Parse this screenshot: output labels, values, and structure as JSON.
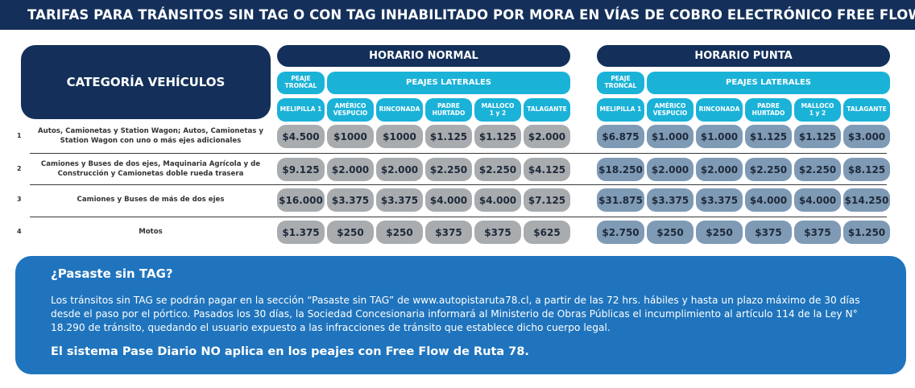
{
  "title": "TARIFAS PARA TRÁNSITOS SIN TAG O CON TAG INHABILITADO POR MORA EN VÍAS DE COBRO ELECTRÓNICO FREE FLOW",
  "table": {
    "category_header": "CATEGORÍA VEHÍCULOS",
    "groups": [
      {
        "label": "HORARIO NORMAL",
        "troncal_label": "PEAJE\nTRONCAL",
        "laterales_label": "PEAJES LATERALES",
        "columns": [
          "MELIPILLA 1",
          "AMÉRICO\nVESPUCIO",
          "RINCONADA",
          "PADRE\nHURTADO",
          "MALLOCO\n1 y 2",
          "TALAGANTE"
        ]
      },
      {
        "label": "HORARIO PUNTA",
        "troncal_label": "PEAJE\nTRONCAL",
        "laterales_label": "PEAJES LATERALES",
        "columns": [
          "MELIPILLA 1",
          "AMÉRICO\nVESPUCIO",
          "RINCONADA",
          "PADRE\nHURTADO",
          "MALLOCO\n1 y 2",
          "TALAGANTE"
        ]
      }
    ],
    "rows": [
      {
        "num": "1",
        "label": "Autos, Camionetas y Station Wagon; Autos, Camionetas y Station Wagon con uno o más ejes adicionales",
        "normal": [
          "$4.500",
          "$1000",
          "$1000",
          "$1.125",
          "$1.125",
          "$2.000"
        ],
        "punta": [
          "$6.875",
          "$1.000",
          "$1.000",
          "$1.125",
          "$1.125",
          "$3.000"
        ]
      },
      {
        "num": "2",
        "label": "Camiones y Buses de dos ejes, Maquinaria Agrícola y de Construcción y Camionetas doble rueda trasera",
        "normal": [
          "$9.125",
          "$2.000",
          "$2.000",
          "$2.250",
          "$2.250",
          "$4.125"
        ],
        "punta": [
          "$18.250",
          "$2.000",
          "$2.000",
          "$2.250",
          "$2.250",
          "$8.125"
        ]
      },
      {
        "num": "3",
        "label": "Camiones y Buses de más de dos ejes",
        "normal": [
          "$16.000",
          "$3.375",
          "$3.375",
          "$4.000",
          "$4.000",
          "$7.125"
        ],
        "punta": [
          "$31.875",
          "$3.375",
          "$3.375",
          "$4.000",
          "$4.000",
          "$14.250"
        ]
      },
      {
        "num": "4",
        "label": "Motos",
        "normal": [
          "$1.375",
          "$250",
          "$250",
          "$375",
          "$375",
          "$625"
        ],
        "punta": [
          "$2.750",
          "$250",
          "$250",
          "$375",
          "$375",
          "$1.250"
        ]
      }
    ]
  },
  "info": {
    "title": "¿Pasaste sin TAG?",
    "text": "Los tránsitos sin TAG se podrán pagar en la sección “Pasaste sin TAG” de www.autopistaruta78.cl, a partir de las 72 hrs. hábiles y hasta un plazo máximo de 30 días desde el paso por el pórtico. Pasados los 30 días, la Sociedad Concesionaria informará al Ministerio de Obras Públicas el incumplimiento al artículo 114 de la Ley N° 18.290 de tránsito, quedando el usuario expuesto a las infracciones de tránsito que establece dicho cuerpo legal.",
    "footer": "El sistema Pase Diario NO aplica en los peajes con Free Flow de Ruta 78."
  },
  "colors": {
    "navy": "#14305a",
    "cyan": "#1bb2d8",
    "normal_cell": "#a9acaf",
    "punta_cell": "#7f9ab5",
    "info_bg": "#1f74bd"
  }
}
